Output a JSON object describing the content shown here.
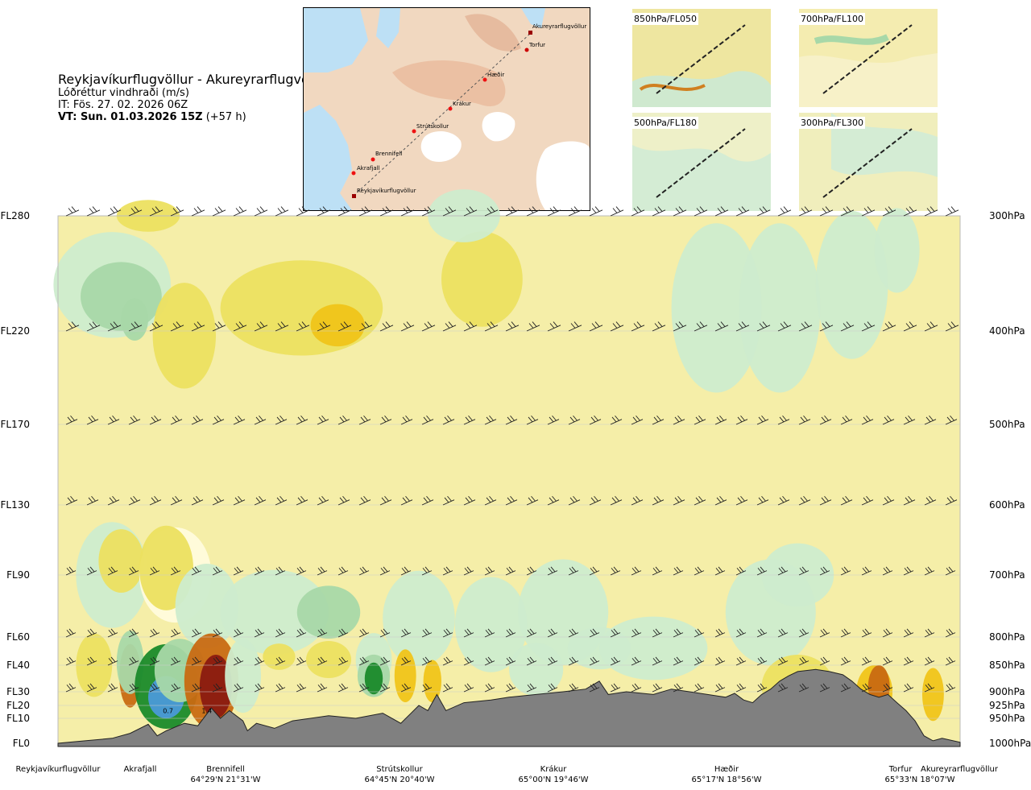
{
  "header": {
    "route": "Reykjavíkurflugvöllur - Akureyrarflugvöllur",
    "variable": "Lóðréttur vindhraði (m/s)",
    "issue_time": "IT: Fös. 27. 02. 2026 06Z",
    "valid_time": "VT: Sun. 01.03.2026 15Z",
    "lead": " (+57 h)"
  },
  "map": {
    "points": [
      {
        "name": "Akureyrarflugvöllur",
        "type": "airport"
      },
      {
        "name": "Torfur",
        "type": "waypoint"
      },
      {
        "name": "Hæðir",
        "type": "waypoint"
      },
      {
        "name": "Krákur",
        "type": "waypoint"
      },
      {
        "name": "Strútskollur",
        "type": "waypoint"
      },
      {
        "name": "Brennifell",
        "type": "waypoint"
      },
      {
        "name": "Akrafjall",
        "type": "waypoint"
      },
      {
        "name": "Reykjavíkurflugvöllur",
        "type": "airport"
      }
    ]
  },
  "mini_maps": [
    {
      "label": "850hPa/FL050"
    },
    {
      "label": "700hPa/FL100"
    },
    {
      "label": "500hPa/FL180"
    },
    {
      "label": "300hPa/FL300"
    }
  ],
  "chart_data": {
    "type": "heatmap",
    "title": "Lóðréttur vindhraði (m/s)",
    "x_axis": {
      "waypoints": [
        {
          "name": "Reykjavíkurflugvöllur",
          "coord": "",
          "dist": 0.0
        },
        {
          "name": "Akrafjall",
          "coord": "",
          "dist": 0.09
        },
        {
          "name": "Brennifell",
          "coord": "64°29'N 21°31'W",
          "dist": 0.187
        },
        {
          "name": "Strútskollur",
          "coord": "64°45'N 20°40'W",
          "dist": 0.378
        },
        {
          "name": "Krákur",
          "coord": "65°00'N 19°46'W",
          "dist": 0.57
        },
        {
          "name": "Hæðir",
          "coord": "65°17'N 18°56'W",
          "dist": 0.76
        },
        {
          "name": "Torfur",
          "coord": "65°33'N 18°07'W",
          "dist": 0.937
        },
        {
          "name": "Akureyrarflugvöllur",
          "coord": "",
          "dist": 1.0
        }
      ]
    },
    "y_axis_left": [
      "FL280",
      "FL220",
      "FL170",
      "FL130",
      "FL90",
      "FL60",
      "FL40",
      "FL30",
      "FL20",
      "FL10",
      "FL0"
    ],
    "y_axis_right": [
      "300hPa",
      "400hPa",
      "500hPa",
      "600hPa",
      "700hPa",
      "800hPa",
      "850hPa",
      "900hPa",
      "925hPa",
      "950hPa",
      "1000hPa"
    ],
    "levels_hpa": [
      300,
      400,
      500,
      600,
      700,
      800,
      850,
      900,
      925,
      950,
      1000
    ],
    "annotations": [
      {
        "text": "0.7",
        "dist": 0.122,
        "hpa": 940
      },
      {
        "text": "1.4",
        "dist": 0.165,
        "hpa": 940
      }
    ],
    "colormap": {
      "negative_strong": "#1a8a2a",
      "negative_mid": "#a8d8a8",
      "negative_weak": "#cdeccd",
      "neutral_light": "#fffbdc",
      "neutral": "#f5eea8",
      "positive_weak": "#ece060",
      "positive_mid": "#f0c419",
      "positive_strong": "#c86a12",
      "positive_max": "#8a1a10",
      "terrain": "#808080"
    },
    "grid": true
  }
}
